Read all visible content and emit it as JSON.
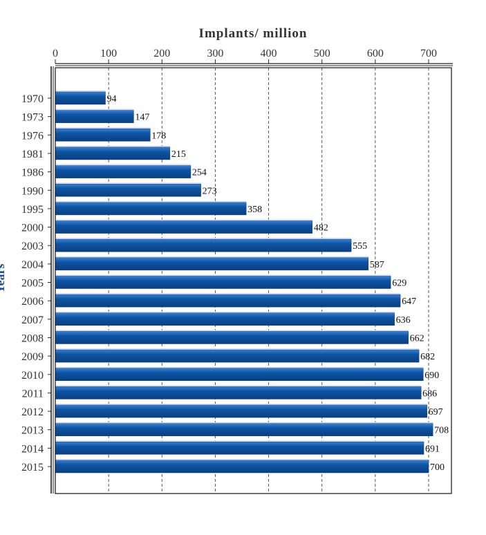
{
  "chart_data": {
    "type": "bar",
    "orientation": "horizontal",
    "title": "",
    "xlabel": "Implants/ million",
    "ylabel": "Years",
    "xlim": [
      0,
      750
    ],
    "x_ticks": [
      0,
      100,
      200,
      300,
      400,
      500,
      600,
      700
    ],
    "grid": "vertical dashed",
    "axis_position": "top",
    "bar_color": "#0d55a4",
    "categories": [
      "1970",
      "1973",
      "1976",
      "1981",
      "1986",
      "1990",
      "1995",
      "2000",
      "2003",
      "2004",
      "2005",
      "2006",
      "2007",
      "2008",
      "2009",
      "2010",
      "2011",
      "2012",
      "2013",
      "2014",
      "2015"
    ],
    "values": [
      94,
      147,
      178,
      215,
      254,
      273,
      358,
      482,
      555,
      587,
      629,
      647,
      636,
      662,
      682,
      690,
      686,
      697,
      708,
      691,
      700
    ]
  }
}
